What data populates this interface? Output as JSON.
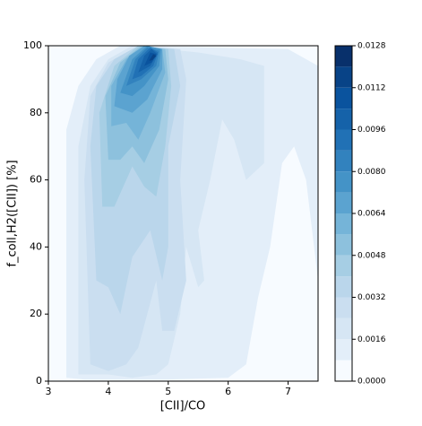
{
  "chart_data": {
    "type": "contourf",
    "xlabel": "[CII]/CO",
    "ylabel": "f_coll,H2([CII]) [%]",
    "xlim": [
      3,
      7.5
    ],
    "ylim": [
      0,
      100
    ],
    "xticks": [
      3,
      4,
      5,
      6,
      7
    ],
    "yticks": [
      0,
      20,
      40,
      60,
      80,
      100
    ],
    "clim": [
      0,
      0.0128
    ],
    "levels": [
      0,
      0.0008,
      0.0016,
      0.0024,
      0.0032,
      0.004,
      0.0048,
      0.0056,
      0.0064,
      0.0072,
      0.008,
      0.0088,
      0.0096,
      0.0104,
      0.0112,
      0.012,
      0.0128
    ],
    "colors": [
      "#f7fbff",
      "#e3eef9",
      "#d6e6f4",
      "#cadef0",
      "#bad6eb",
      "#a6cee4",
      "#8dc1dd",
      "#75b4d8",
      "#5ba3d0",
      "#4493c7",
      "#3282be",
      "#2171b5",
      "#1562a9",
      "#0a539e",
      "#084387",
      "#08306b"
    ],
    "cticks": [
      {
        "value": 0,
        "label": "0.0000"
      },
      {
        "value": 0.0016,
        "label": "0.0016"
      },
      {
        "value": 0.0032,
        "label": "0.0032"
      },
      {
        "value": 0.0048,
        "label": "0.0048"
      },
      {
        "value": 0.0064,
        "label": "0.0064"
      },
      {
        "value": 0.008,
        "label": "0.0080"
      },
      {
        "value": 0.0096,
        "label": "0.0096"
      },
      {
        "value": 0.0112,
        "label": "0.0112"
      },
      {
        "value": 0.0128,
        "label": "0.0128"
      }
    ],
    "contours": [
      {
        "level": 0.0008,
        "x": [
          3.3,
          3.3,
          3.5,
          3.8,
          4.2,
          7.0,
          7.5,
          7.5,
          7.3,
          7.1,
          6.9,
          6.7,
          6.5,
          6.3,
          6.0,
          5.0,
          4.4,
          3.6
        ],
        "y": [
          1,
          75,
          88,
          96,
          100,
          99,
          94,
          30,
          60,
          70,
          65,
          40,
          25,
          5,
          1,
          0.5,
          0.5,
          0.5
        ]
      },
      {
        "level": 0.0016,
        "x": [
          3.5,
          3.5,
          3.7,
          4.0,
          4.4,
          5.5,
          6.2,
          6.6,
          6.6,
          6.3,
          6.1,
          5.9,
          5.7,
          5.5,
          5.6,
          5.5,
          5.3,
          5.2,
          5.0,
          4.8,
          4.4,
          4.0
        ],
        "y": [
          2,
          70,
          88,
          96,
          100,
          98,
          96,
          94,
          65,
          60,
          72,
          78,
          60,
          45,
          30,
          28,
          40,
          20,
          5,
          2,
          1,
          2
        ]
      },
      {
        "level": 0.0024,
        "x": [
          3.7,
          3.6,
          3.7,
          4.0,
          4.5,
          5.2,
          5.3,
          5.2,
          5.3,
          5.1,
          4.9,
          4.8,
          4.5,
          4.3,
          4.0
        ],
        "y": [
          5,
          60,
          85,
          95,
          100,
          99,
          90,
          60,
          30,
          15,
          15,
          30,
          10,
          5,
          3
        ]
      },
      {
        "level": 0.0032,
        "x": [
          3.8,
          3.7,
          3.8,
          4.1,
          4.5,
          5.1,
          5.2,
          5.0,
          5.0,
          4.9,
          4.7,
          4.4,
          4.2,
          4.0
        ],
        "y": [
          30,
          70,
          88,
          96,
          100,
          99,
          88,
          70,
          40,
          30,
          45,
          37,
          20,
          28
        ]
      },
      {
        "level": 0.004,
        "x": [
          3.9,
          3.85,
          4.1,
          4.5,
          5.0,
          5.05,
          4.95,
          4.8,
          4.6,
          4.4,
          4.1
        ],
        "y": [
          52,
          80,
          94,
          100,
          99,
          88,
          70,
          55,
          58,
          64,
          52
        ]
      },
      {
        "level": 0.0048,
        "x": [
          4.0,
          3.95,
          4.2,
          4.55,
          4.95,
          5.0,
          4.85,
          4.6,
          4.4,
          4.2
        ],
        "y": [
          66,
          85,
          95,
          100,
          99,
          90,
          75,
          65,
          70,
          66
        ]
      },
      {
        "level": 0.0056,
        "x": [
          4.05,
          4.05,
          4.3,
          4.6,
          4.9,
          4.95,
          4.7,
          4.5,
          4.3
        ],
        "y": [
          76,
          88,
          96,
          100,
          99,
          92,
          80,
          72,
          77
        ]
      },
      {
        "level": 0.0064,
        "x": [
          4.1,
          4.15,
          4.35,
          4.6,
          4.9,
          4.9,
          4.65,
          4.4
        ],
        "y": [
          82,
          90,
          97,
          100,
          99,
          93,
          84,
          80
        ]
      },
      {
        "level": 0.0072,
        "x": [
          4.2,
          4.4,
          4.65,
          4.88,
          4.85,
          4.6,
          4.4
        ],
        "y": [
          86,
          96,
          100,
          99,
          94,
          88,
          85
        ]
      },
      {
        "level": 0.008,
        "x": [
          4.3,
          4.45,
          4.65,
          4.85,
          4.8,
          4.55
        ],
        "y": [
          88,
          96,
          99.5,
          98.5,
          94,
          90
        ]
      },
      {
        "level": 0.0088,
        "x": [
          4.4,
          4.5,
          4.7,
          4.83,
          4.75,
          4.55
        ],
        "y": [
          90,
          96,
          99.5,
          98,
          94,
          91
        ]
      },
      {
        "level": 0.0096,
        "x": [
          4.5,
          4.6,
          4.72,
          4.82,
          4.7
        ],
        "y": [
          92,
          97,
          99,
          97.5,
          94
        ]
      },
      {
        "level": 0.0104,
        "x": [
          4.6,
          4.7,
          4.8,
          4.72
        ],
        "y": [
          94,
          98,
          97.5,
          95
        ]
      },
      {
        "level": 0.0112,
        "x": [
          4.68,
          4.75,
          4.8,
          4.74
        ],
        "y": [
          95.5,
          97.5,
          97,
          95.8
        ]
      }
    ]
  }
}
